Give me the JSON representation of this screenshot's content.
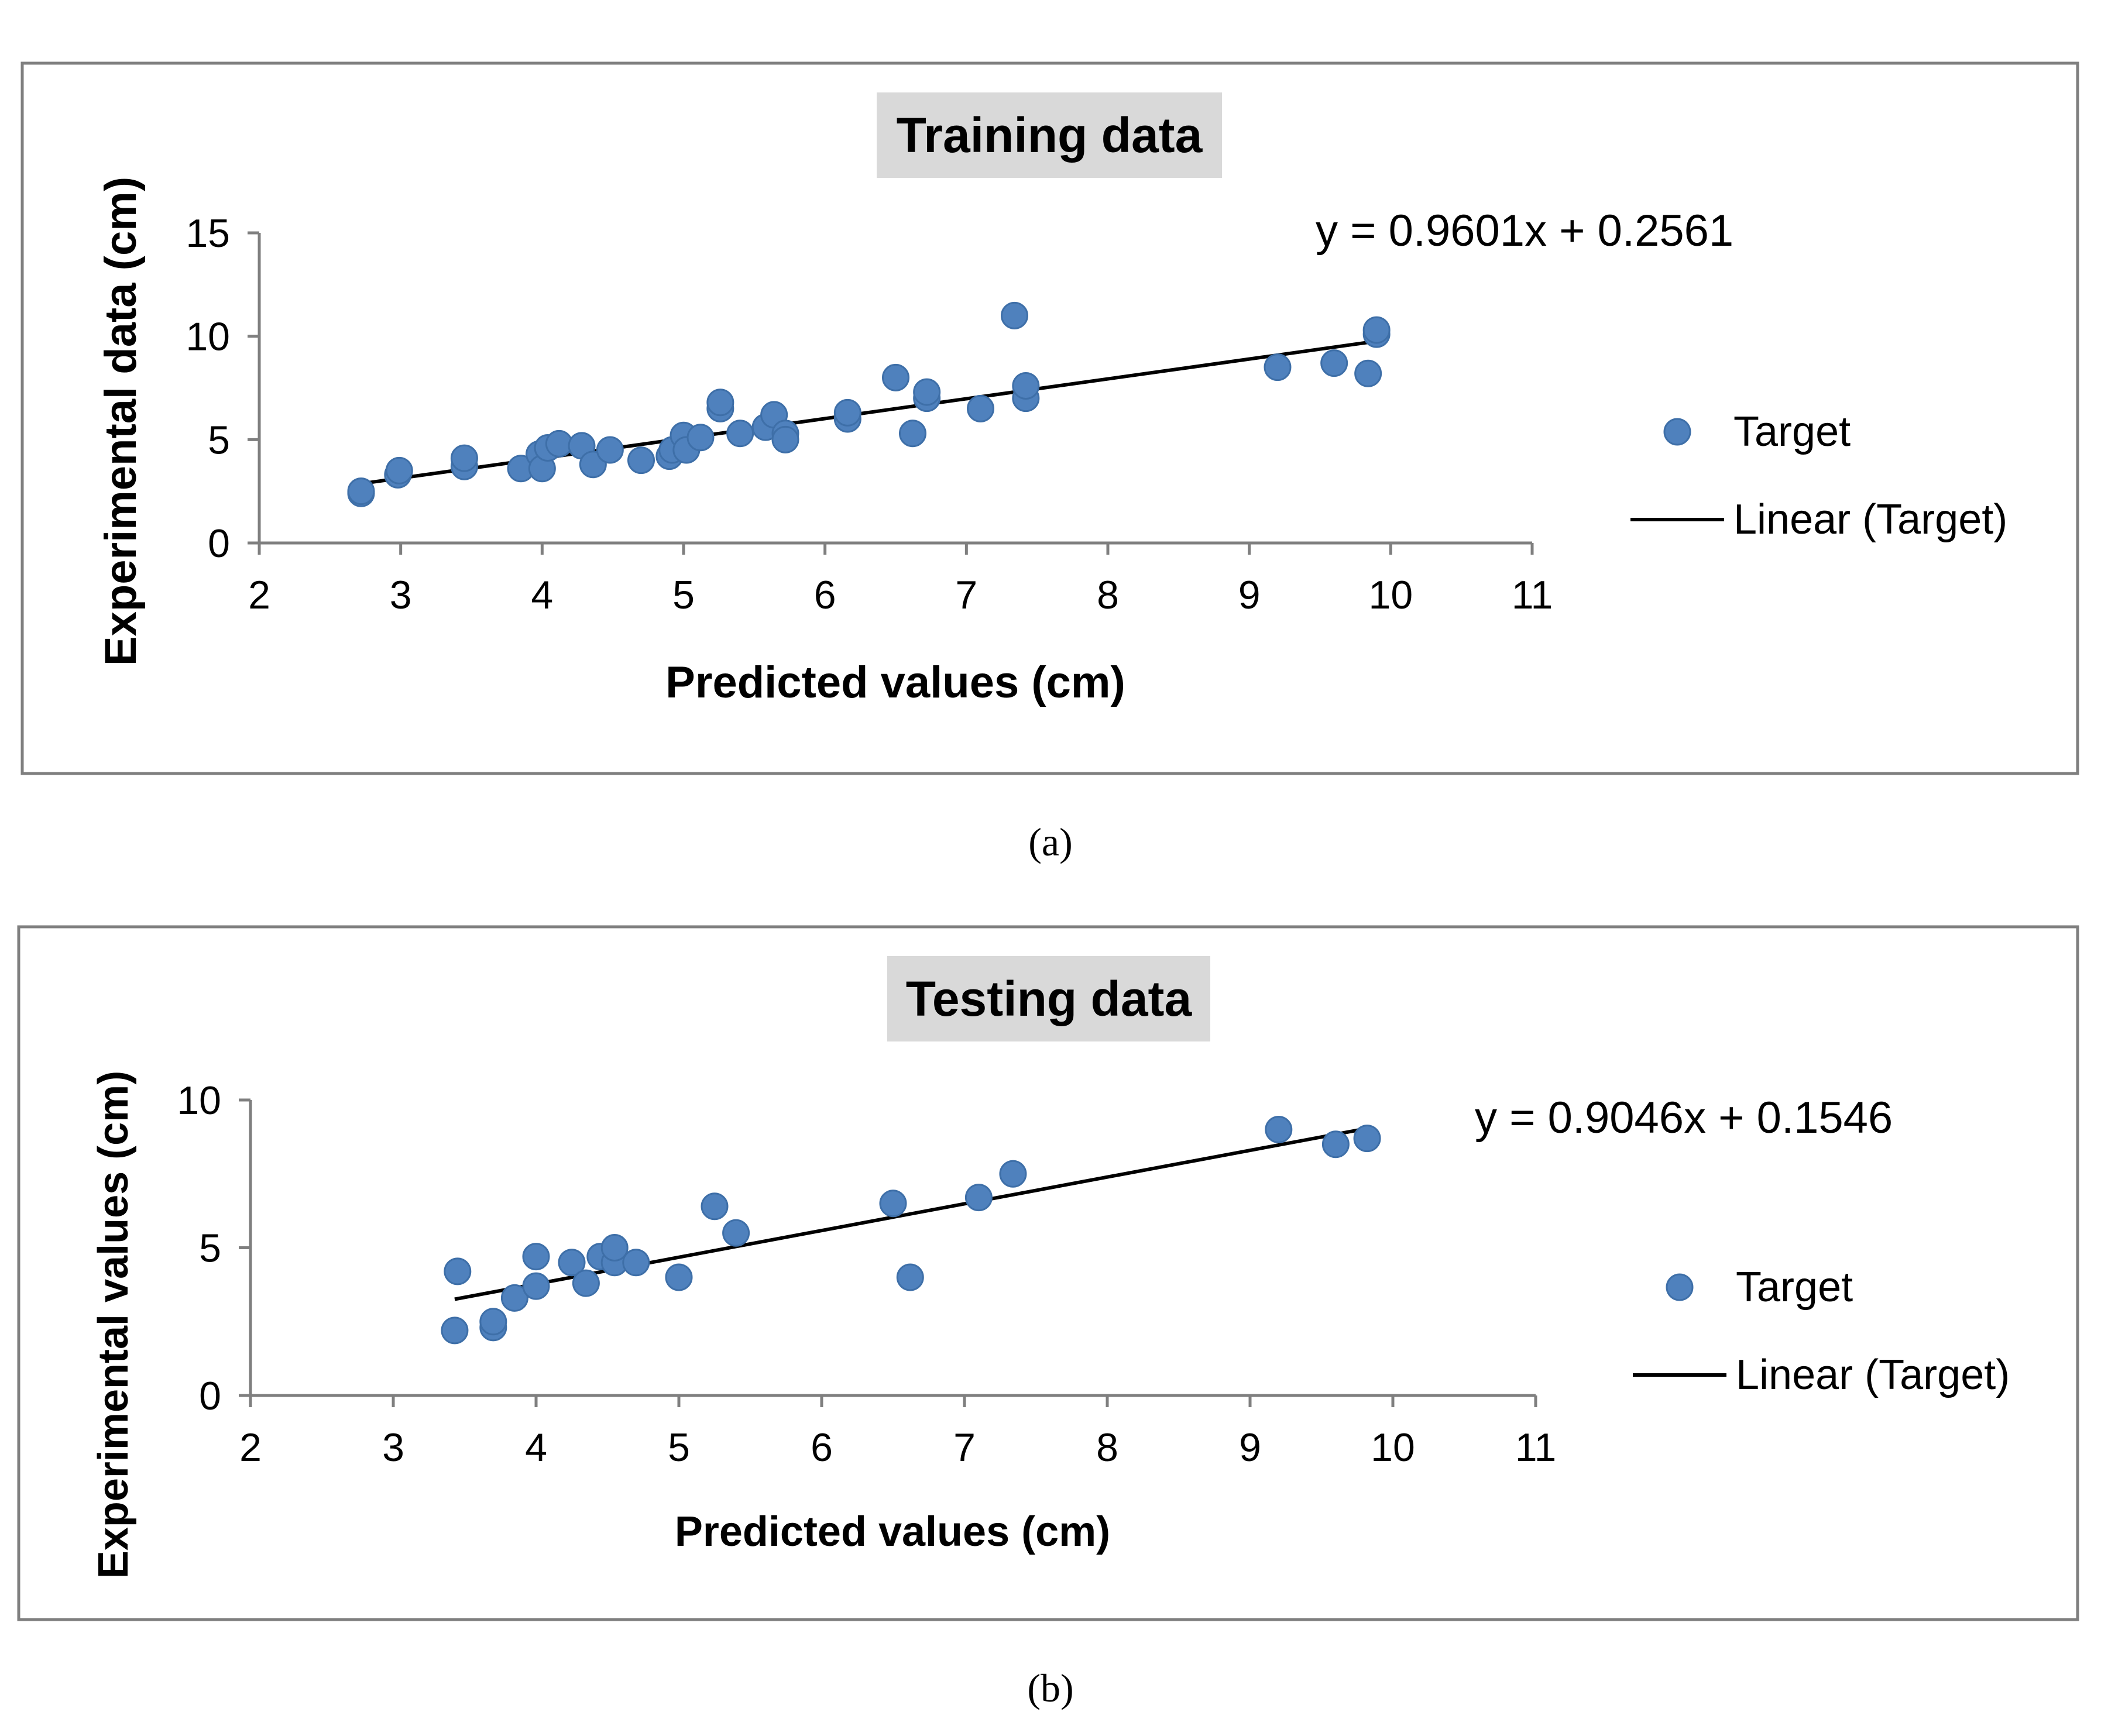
{
  "colors": {
    "marker": "#4F81BD",
    "marker_edge": "#3E6FA8",
    "trendline": "#000000",
    "axis": "#7f7f7f",
    "frame": "#7f7f7f",
    "title_bg": "#d9d9d9",
    "text": "#000000"
  },
  "panels": [
    {
      "caption": "(a)"
    },
    {
      "caption": "(b)"
    }
  ],
  "chart_data": [
    {
      "type": "scatter",
      "title": "Training data",
      "xlabel": "Predicted values (cm)",
      "ylabel": "Experimental data (cm)",
      "xlim": [
        2,
        11
      ],
      "ylim": [
        0,
        15
      ],
      "xticks": [
        2,
        3,
        4,
        5,
        6,
        7,
        8,
        9,
        10,
        11
      ],
      "yticks": [
        0,
        5,
        10,
        15
      ],
      "legend": [
        "Target",
        "Linear (Target)"
      ],
      "legend_position": "right",
      "equation": "y = 0.9601x + 0.2561",
      "trendline": {
        "slope": 0.9601,
        "intercept": 0.2561,
        "x_range": [
          2.7,
          9.9
        ]
      },
      "series": [
        {
          "name": "Target",
          "points": [
            [
              2.72,
              2.4
            ],
            [
              2.72,
              2.5
            ],
            [
              2.98,
              3.3
            ],
            [
              2.99,
              3.5
            ],
            [
              3.45,
              3.7
            ],
            [
              3.45,
              4.1
            ],
            [
              3.85,
              3.6
            ],
            [
              3.98,
              4.3
            ],
            [
              4.0,
              3.6
            ],
            [
              4.04,
              4.6
            ],
            [
              4.12,
              4.8
            ],
            [
              4.28,
              4.7
            ],
            [
              4.36,
              3.8
            ],
            [
              4.48,
              4.5
            ],
            [
              4.7,
              4.0
            ],
            [
              4.9,
              4.2
            ],
            [
              4.92,
              4.5
            ],
            [
              5.0,
              5.2
            ],
            [
              5.02,
              4.5
            ],
            [
              5.12,
              5.1
            ],
            [
              5.26,
              6.5
            ],
            [
              5.26,
              6.8
            ],
            [
              5.4,
              5.3
            ],
            [
              5.58,
              5.6
            ],
            [
              5.64,
              6.2
            ],
            [
              5.72,
              5.3
            ],
            [
              5.72,
              5.0
            ],
            [
              6.16,
              6.0
            ],
            [
              6.16,
              6.3
            ],
            [
              6.5,
              8.0
            ],
            [
              6.62,
              5.3
            ],
            [
              6.72,
              7.0
            ],
            [
              6.72,
              7.3
            ],
            [
              7.1,
              6.5
            ],
            [
              7.34,
              11.0
            ],
            [
              7.42,
              7.0
            ],
            [
              7.42,
              7.6
            ],
            [
              9.2,
              8.5
            ],
            [
              9.6,
              8.7
            ],
            [
              9.84,
              8.2
            ],
            [
              9.9,
              10.1
            ],
            [
              9.9,
              10.3
            ]
          ]
        }
      ]
    },
    {
      "type": "scatter",
      "title": "Testing data",
      "xlabel": "Predicted values (cm)",
      "ylabel": "Experimental values (cm)",
      "xlim": [
        2,
        11
      ],
      "ylim": [
        0,
        10
      ],
      "xticks": [
        2,
        3,
        4,
        5,
        6,
        7,
        8,
        9,
        10,
        11
      ],
      "yticks": [
        0,
        5,
        10
      ],
      "legend": [
        "Target",
        "Linear (Target)"
      ],
      "legend_position": "right",
      "equation": "y = 0.9046x + 0.1546",
      "trendline": {
        "slope": 0.9046,
        "intercept": 0.1546,
        "x_range": [
          3.43,
          9.82
        ]
      },
      "series": [
        {
          "name": "Target",
          "points": [
            [
              3.43,
              2.2
            ],
            [
              3.45,
              4.2
            ],
            [
              3.7,
              2.3
            ],
            [
              3.7,
              2.5
            ],
            [
              3.85,
              3.3
            ],
            [
              4.0,
              3.7
            ],
            [
              4.0,
              4.7
            ],
            [
              4.25,
              4.5
            ],
            [
              4.35,
              3.8
            ],
            [
              4.45,
              4.7
            ],
            [
              4.55,
              4.5
            ],
            [
              4.55,
              5.0
            ],
            [
              4.7,
              4.5
            ],
            [
              5.0,
              4.0
            ],
            [
              5.25,
              6.4
            ],
            [
              5.4,
              5.5
            ],
            [
              6.5,
              6.5
            ],
            [
              6.62,
              4.0
            ],
            [
              7.1,
              6.7
            ],
            [
              7.34,
              7.5
            ],
            [
              9.2,
              9.0
            ],
            [
              9.6,
              8.5
            ],
            [
              9.82,
              8.7
            ]
          ]
        }
      ]
    }
  ]
}
